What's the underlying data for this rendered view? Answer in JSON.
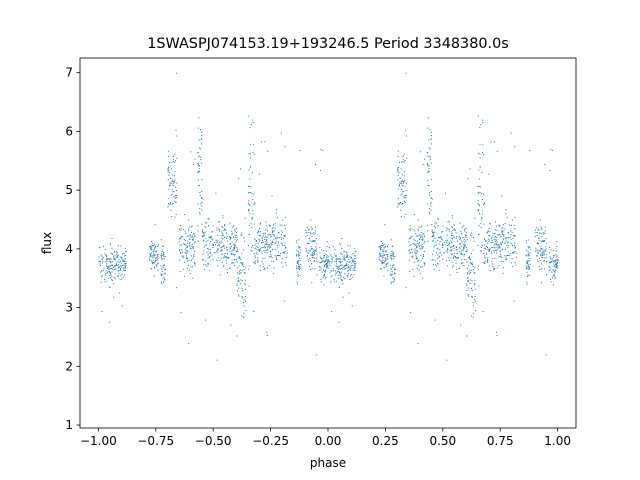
{
  "chart_data": {
    "type": "scatter",
    "title": "1SWASPJ074153.19+193246.5 Period 3348380.0s",
    "xlabel": "phase",
    "ylabel": "flux",
    "xlim": [
      -1.08,
      1.08
    ],
    "ylim": [
      0.95,
      7.25
    ],
    "xticks": [
      -1.0,
      -0.75,
      -0.5,
      -0.25,
      0.0,
      0.25,
      0.5,
      0.75,
      1.0
    ],
    "xtick_labels": [
      "−1.00",
      "−0.75",
      "−0.50",
      "−0.25",
      "0.00",
      "0.25",
      "0.50",
      "0.75",
      "1.00"
    ],
    "yticks": [
      1,
      2,
      3,
      4,
      5,
      6,
      7
    ],
    "ytick_labels": [
      "1",
      "2",
      "3",
      "4",
      "5",
      "6",
      "7"
    ],
    "grid": false,
    "series": [
      {
        "color": "#1f77b4",
        "marker_size": 1,
        "description_of_distribution": "phase-folded light curve; the pattern over phase 0 to 1 is repeated over phase -1 to 0",
        "clusters": [
          {
            "x": [
              0.0,
              0.12
            ],
            "y_center": 3.75,
            "y_spread": 0.25
          },
          {
            "x": [
              0.22,
              0.26
            ],
            "y_center": 3.9,
            "y_spread": 0.2
          },
          {
            "x": [
              0.27,
              0.29
            ],
            "y_center": 3.7,
            "y_spread": 0.3
          },
          {
            "x": [
              0.3,
              0.34
            ],
            "y_center": 5.1,
            "y_spread": 0.45
          },
          {
            "x": [
              0.35,
              0.42
            ],
            "y_center": 4.0,
            "y_spread": 0.4
          },
          {
            "x": [
              0.43,
              0.45
            ],
            "y_center": 5.3,
            "y_spread": 1.0
          },
          {
            "x": [
              0.45,
              0.6
            ],
            "y_center": 4.1,
            "y_spread": 0.35
          },
          {
            "x": [
              0.6,
              0.64
            ],
            "y_center": 3.6,
            "y_spread": 0.6
          },
          {
            "x": [
              0.65,
              0.68
            ],
            "y_center": 4.8,
            "y_spread": 1.2
          },
          {
            "x": [
              0.68,
              0.82
            ],
            "y_center": 4.1,
            "y_spread": 0.35
          },
          {
            "x": [
              0.86,
              0.88
            ],
            "y_center": 3.8,
            "y_spread": 0.3
          },
          {
            "x": [
              0.9,
              0.95
            ],
            "y_center": 4.0,
            "y_spread": 0.35
          },
          {
            "x": [
              0.96,
              1.0
            ],
            "y_center": 3.75,
            "y_spread": 0.25
          }
        ]
      }
    ]
  }
}
